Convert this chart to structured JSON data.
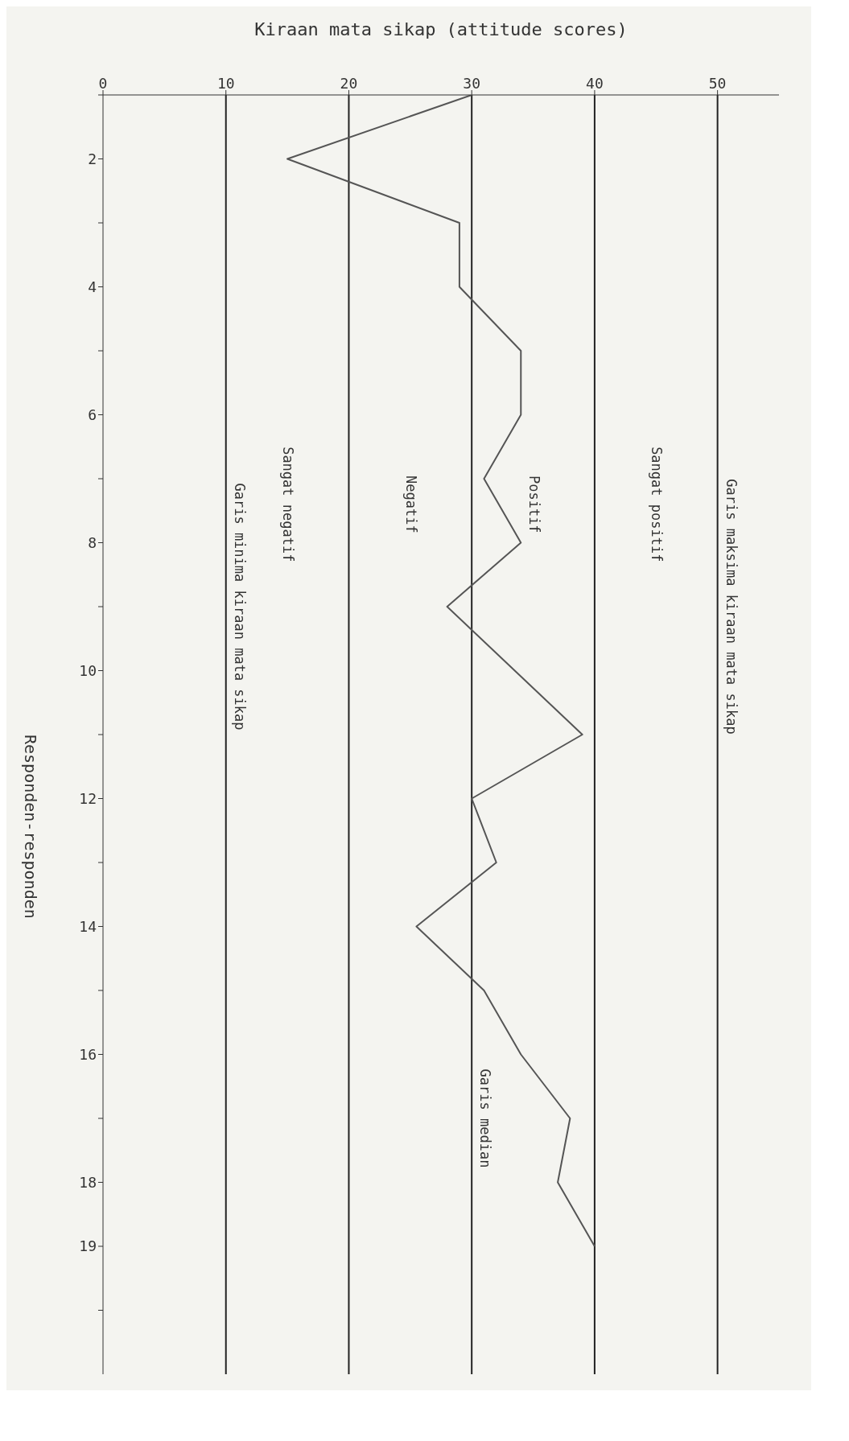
{
  "chart_data": {
    "type": "line",
    "orientation": "horizontal",
    "xlabel": "Kiraan mata sikap (attitude scores)",
    "ylabel": "Responden-responden",
    "x": [
      1,
      2,
      3,
      4,
      5,
      6,
      7,
      8,
      9,
      10,
      11,
      12,
      13,
      14,
      15,
      16,
      17,
      18,
      19
    ],
    "series": [
      {
        "color": "#555555",
        "values": [
          30,
          15,
          29,
          29,
          34,
          34,
          31,
          34,
          28,
          33.5,
          39,
          30,
          32,
          25.5,
          31,
          34,
          38,
          37,
          40
        ]
      }
    ],
    "ylim": [
      21,
      1
    ],
    "yticks": [
      {
        "value": 1,
        "label": null
      },
      2,
      {
        "value": 3,
        "label": null
      },
      4,
      {
        "value": 5,
        "label": null
      },
      6,
      {
        "value": 7,
        "label": null
      },
      8,
      {
        "value": 9,
        "label": null
      },
      10,
      {
        "value": 11,
        "label": null
      },
      12,
      {
        "value": 13,
        "label": null
      },
      14,
      {
        "value": 15,
        "label": null
      },
      16,
      {
        "value": 17,
        "label": null
      },
      18,
      19,
      {
        "value": 20,
        "label": null
      }
    ],
    "xlim": [
      0,
      55
    ],
    "xticks": [
      0,
      10,
      20,
      30,
      40,
      50
    ],
    "ref_lines": [
      {
        "axis": "x",
        "value": 10,
        "label": "Garis minima kiraan mata sikap"
      },
      {
        "axis": "x",
        "value": 20
      },
      {
        "axis": "x",
        "value": 30,
        "label": "Garis median"
      },
      {
        "axis": "x",
        "value": 40
      },
      {
        "axis": "x",
        "value": 50,
        "label": "Garis maksima kiraan mata sikap"
      }
    ],
    "annotations": [
      "Sangat negatif",
      "Negatif",
      "Positif",
      "Sangat positif"
    ],
    "grid": false,
    "marker": "none",
    "line_style": "solid"
  }
}
